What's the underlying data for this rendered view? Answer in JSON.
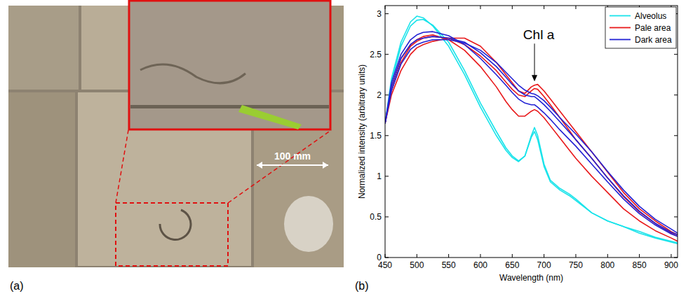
{
  "panel_labels": [
    "(a)",
    "(b)"
  ],
  "photo": {
    "scale_label": "100 mm"
  },
  "chart_data": {
    "type": "line",
    "x_label": "Wavelength (nm)",
    "y_label": "Normalized intensity (arbitrary units)",
    "annotations": [
      {
        "text": "Chl a",
        "x": 685,
        "y": 2.15
      }
    ],
    "x": [
      450,
      460,
      475,
      490,
      500,
      510,
      525,
      550,
      575,
      600,
      625,
      640,
      650,
      660,
      670,
      680,
      685,
      690,
      700,
      710,
      725,
      740,
      750,
      775,
      800,
      825,
      850,
      875,
      900,
      910
    ],
    "xlim": [
      450,
      910
    ],
    "xticks": [
      450,
      500,
      550,
      600,
      650,
      700,
      750,
      800,
      850,
      900
    ],
    "ylim": [
      0,
      3.1
    ],
    "yticks": [
      0,
      0.5,
      1,
      1.5,
      2,
      2.5,
      3
    ],
    "grid": false,
    "legend": "top-right",
    "series": [
      {
        "name": "Alveolus",
        "color": "#19e3ea",
        "values": [
          [
            1.65,
            2.2,
            2.65,
            2.9,
            2.97,
            2.95,
            2.85,
            2.6,
            2.25,
            1.85,
            1.5,
            1.32,
            1.23,
            1.18,
            1.25,
            1.5,
            1.6,
            1.5,
            1.15,
            0.95,
            0.85,
            0.78,
            0.72,
            0.55,
            0.45,
            0.38,
            0.32,
            0.25,
            0.2,
            0.18
          ],
          [
            1.65,
            2.15,
            2.6,
            2.85,
            2.92,
            2.93,
            2.86,
            2.65,
            2.3,
            1.9,
            1.55,
            1.35,
            1.25,
            1.19,
            1.25,
            1.48,
            1.55,
            1.45,
            1.12,
            0.93,
            0.83,
            0.76,
            0.7,
            0.55,
            0.45,
            0.38,
            0.3,
            0.24,
            0.19,
            0.17
          ]
        ]
      },
      {
        "name": "Pale area",
        "color": "#e8191b",
        "values": [
          [
            1.65,
            2.0,
            2.3,
            2.5,
            2.58,
            2.62,
            2.66,
            2.7,
            2.7,
            2.6,
            2.4,
            2.25,
            2.15,
            2.05,
            2.02,
            2.1,
            2.12,
            2.13,
            2.05,
            1.95,
            1.8,
            1.65,
            1.55,
            1.3,
            1.05,
            0.8,
            0.6,
            0.45,
            0.32,
            0.28
          ],
          [
            1.65,
            2.1,
            2.45,
            2.62,
            2.68,
            2.72,
            2.74,
            2.68,
            2.55,
            2.35,
            2.1,
            1.92,
            1.82,
            1.74,
            1.74,
            1.8,
            1.82,
            1.8,
            1.72,
            1.62,
            1.47,
            1.32,
            1.22,
            1.0,
            0.8,
            0.6,
            0.45,
            0.33,
            0.24,
            0.2
          ],
          [
            1.65,
            2.05,
            2.4,
            2.6,
            2.66,
            2.7,
            2.72,
            2.7,
            2.62,
            2.48,
            2.3,
            2.16,
            2.07,
            2.0,
            1.98,
            2.05,
            2.08,
            2.07,
            1.98,
            1.88,
            1.72,
            1.56,
            1.45,
            1.22,
            0.98,
            0.75,
            0.56,
            0.42,
            0.3,
            0.26
          ]
        ]
      },
      {
        "name": "Dark area",
        "color": "#2222d4",
        "values": [
          [
            1.65,
            2.15,
            2.5,
            2.68,
            2.74,
            2.77,
            2.78,
            2.73,
            2.62,
            2.45,
            2.25,
            2.12,
            2.03,
            1.95,
            1.9,
            1.88,
            1.88,
            1.85,
            1.78,
            1.7,
            1.57,
            1.45,
            1.37,
            1.15,
            0.93,
            0.72,
            0.54,
            0.4,
            0.29,
            0.26
          ],
          [
            1.65,
            2.1,
            2.45,
            2.62,
            2.68,
            2.7,
            2.72,
            2.7,
            2.65,
            2.52,
            2.35,
            2.22,
            2.13,
            2.05,
            2.0,
            1.98,
            1.98,
            1.95,
            1.88,
            1.8,
            1.67,
            1.54,
            1.45,
            1.22,
            0.98,
            0.76,
            0.57,
            0.42,
            0.31,
            0.28
          ],
          [
            1.65,
            2.05,
            2.38,
            2.56,
            2.62,
            2.65,
            2.68,
            2.68,
            2.64,
            2.55,
            2.4,
            2.28,
            2.2,
            2.12,
            2.06,
            2.02,
            2.01,
            1.99,
            1.93,
            1.85,
            1.72,
            1.6,
            1.52,
            1.3,
            1.06,
            0.83,
            0.63,
            0.47,
            0.35,
            0.3
          ]
        ]
      }
    ]
  }
}
